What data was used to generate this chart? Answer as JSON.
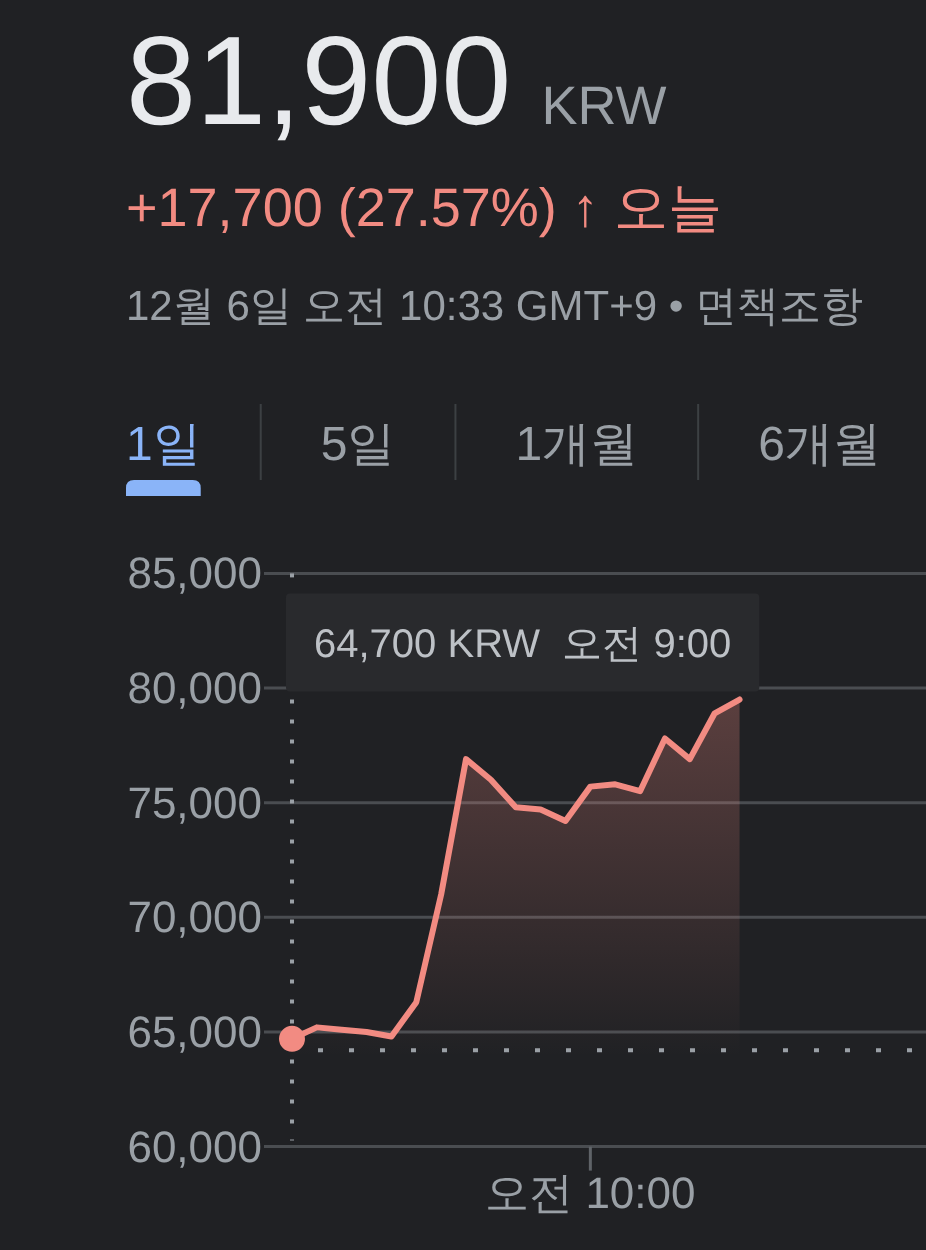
{
  "chart_data": {
    "type": "area",
    "title": "81,900 KRW",
    "subtitle": "+17,700 (27.57%) ↑ 오늘",
    "annotations": [
      "12월 6일 오전 10:33 GMT+9 • 면책조항",
      "1일",
      "5일",
      "1개월",
      "6개월",
      "64,700 KRW  오전 9:00"
    ],
    "categories": [
      null,
      null,
      null,
      null,
      null,
      null,
      null,
      null,
      null,
      null,
      null,
      null,
      "오전 10:00",
      null,
      null,
      null,
      null,
      null,
      null,
      null,
      null,
      null,
      null,
      null,
      null,
      null
    ],
    "series": [
      {
        "color": "#f28b82",
        "values": [
          64700,
          65200,
          65100,
          65000,
          64800,
          66300,
          71000,
          76900,
          76000,
          74800,
          74700,
          74200,
          75700,
          75800,
          75500,
          77800,
          76900,
          78900,
          79500,
          null,
          null,
          null,
          null,
          null,
          null,
          null
        ]
      }
    ],
    "ylim": [
      60000,
      85000
    ],
    "yticks": [
      {
        "value": 60000,
        "label": "60,000"
      },
      {
        "value": 65000,
        "label": "65,000"
      },
      {
        "value": 70000,
        "label": "70,000"
      },
      {
        "value": 75000,
        "label": "75,000"
      },
      {
        "value": 80000,
        "label": "80,000"
      },
      {
        "value": 85000,
        "label": "85,000"
      }
    ],
    "grid": "y",
    "line_style": "solid",
    "ref_lines": [
      {
        "axis": "y",
        "value": 64200,
        "color": "#9aa0a6",
        "line_style": "dotted"
      }
    ]
  }
}
